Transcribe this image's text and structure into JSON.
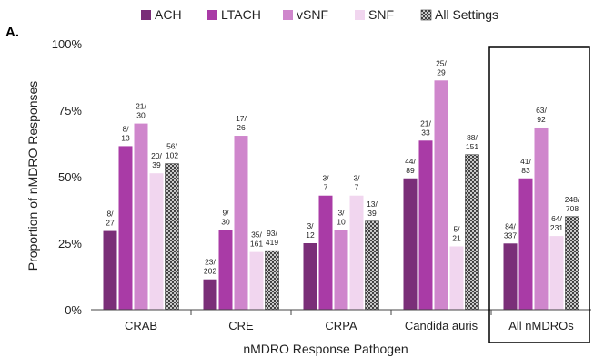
{
  "panel_label": "A.",
  "chart_data": {
    "type": "bar",
    "title": "",
    "xlabel": "nMDRO Response Pathogen",
    "ylabel": "Proportion of nMDRO Responses",
    "ylim": [
      0,
      1
    ],
    "yticks": [
      0,
      0.25,
      0.5,
      0.75,
      1
    ],
    "ytick_labels": [
      "0%",
      "25%",
      "50%",
      "75%",
      "100%"
    ],
    "grid": false,
    "legend_position": "top",
    "categories": [
      "CRAB",
      "CRE",
      "CRPA",
      "Candida auris",
      "All nMDROs"
    ],
    "highlighted_category": "All nMDROs",
    "series": [
      {
        "name": "ACH",
        "color": "#7a2e78",
        "pattern": "solid",
        "values": [
          0.296,
          0.114,
          0.25,
          0.494,
          0.249
        ],
        "labels": [
          [
            "8/",
            "27"
          ],
          [
            "23/",
            "202"
          ],
          [
            "3/",
            "12"
          ],
          [
            "44/",
            "89"
          ],
          [
            "84/",
            "337"
          ]
        ]
      },
      {
        "name": "LTACH",
        "color": "#a93ba6",
        "pattern": "solid",
        "values": [
          0.615,
          0.3,
          0.429,
          0.636,
          0.494
        ],
        "labels": [
          [
            "8/",
            "13"
          ],
          [
            "9/",
            "30"
          ],
          [
            "3/",
            "7"
          ],
          [
            "21/",
            "33"
          ],
          [
            "41/",
            "83"
          ]
        ]
      },
      {
        "name": "vSNF",
        "color": "#cf86cc",
        "pattern": "solid",
        "values": [
          0.7,
          0.654,
          0.3,
          0.862,
          0.685
        ],
        "labels": [
          [
            "21/",
            "30"
          ],
          [
            "17/",
            "26"
          ],
          [
            "3/",
            "10"
          ],
          [
            "25/",
            "29"
          ],
          [
            "63/",
            "92"
          ]
        ]
      },
      {
        "name": "SNF",
        "color": "#f1d6ef",
        "pattern": "solid",
        "values": [
          0.513,
          0.217,
          0.429,
          0.238,
          0.277
        ],
        "labels": [
          [
            "20/",
            "39"
          ],
          [
            "35/",
            "161"
          ],
          [
            "3/",
            "7"
          ],
          [
            "5/",
            "21"
          ],
          [
            "64/",
            "231"
          ]
        ]
      },
      {
        "name": "All Settings",
        "color": "#555555",
        "pattern": "crosshatch",
        "values": [
          0.549,
          0.222,
          0.333,
          0.583,
          0.35
        ],
        "labels": [
          [
            "56/",
            "102"
          ],
          [
            "93/",
            "419"
          ],
          [
            "13/",
            "39"
          ],
          [
            "88/",
            "151"
          ],
          [
            "248/",
            "708"
          ]
        ]
      }
    ]
  }
}
